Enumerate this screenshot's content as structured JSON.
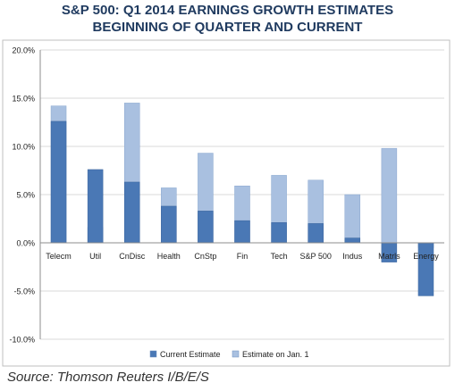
{
  "chart_data": {
    "type": "bar",
    "title": "S&P 500: Q1 2014 EARNINGS GROWTH ESTIMATES",
    "subtitle": "BEGINNING OF QUARTER AND CURRENT",
    "categories": [
      "Telecm",
      "Util",
      "CnDisc",
      "Health",
      "CnStp",
      "Fin",
      "Tech",
      "S&P 500",
      "Indus",
      "Matrls",
      "Energy"
    ],
    "series": [
      {
        "name": "Current Estimate",
        "color": "#4a78b5",
        "values": [
          12.6,
          7.6,
          6.3,
          3.8,
          3.3,
          2.3,
          2.1,
          2.0,
          0.5,
          -2.0,
          -5.5
        ]
      },
      {
        "name": "Estimate on Jan. 1",
        "color": "#a9c0e0",
        "values": [
          14.2,
          1.6,
          14.5,
          5.7,
          9.3,
          5.9,
          7.0,
          6.5,
          5.0,
          9.8,
          -0.5
        ]
      }
    ],
    "ylim": [
      -10,
      20
    ],
    "yticks": [
      "-10.0%",
      "-5.0%",
      "0.0%",
      "5.0%",
      "10.0%",
      "15.0%",
      "20.0%"
    ],
    "ytick_values": [
      -10,
      -5,
      0,
      5,
      10,
      15,
      20
    ],
    "grid": "horizontal",
    "legend_position": "bottom"
  },
  "source_text": "Source: Thomson Reuters I/B/E/S"
}
